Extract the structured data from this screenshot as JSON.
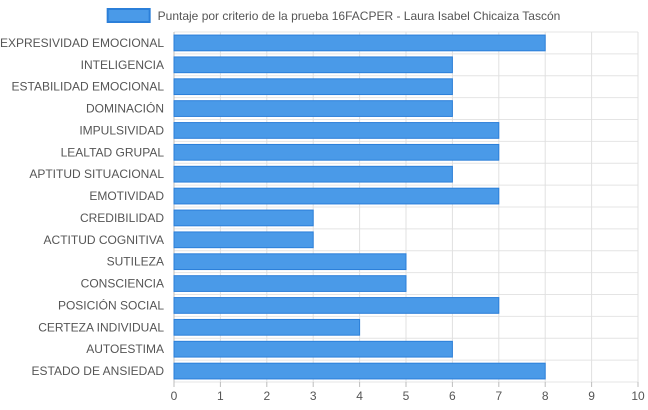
{
  "chart_data": {
    "type": "bar",
    "orientation": "horizontal",
    "categories": [
      "EXPRESIVIDAD EMOCIONAL",
      "INTELIGENCIA",
      "ESTABILIDAD EMOCIONAL",
      "DOMINACIÓN",
      "IMPULSIVIDAD",
      "LEALTAD GRUPAL",
      "APTITUD SITUACIONAL",
      "EMOTIVIDAD",
      "CREDIBILIDAD",
      "ACTITUD COGNITIVA",
      "SUTILEZA",
      "CONSCIENCIA",
      "POSICIÓN SOCIAL",
      "CERTEZA INDIVIDUAL",
      "AUTOESTIMA",
      "ESTADO DE ANSIEDAD"
    ],
    "series": [
      {
        "name": "Puntaje por criterio de la prueba 16FACPER - Laura Isabel Chicaiza Tascón",
        "values": [
          8,
          6,
          6,
          6,
          7,
          7,
          6,
          7,
          3,
          3,
          5,
          5,
          7,
          4,
          6,
          8
        ],
        "color": "#4a9ae8",
        "border_color": "#2b7fd9"
      }
    ],
    "xlim": [
      0,
      10
    ],
    "x_ticks": [
      "0",
      "1",
      "2",
      "3",
      "4",
      "5",
      "6",
      "7",
      "8",
      "9",
      "10"
    ],
    "grid": true,
    "legend_position": "top"
  }
}
